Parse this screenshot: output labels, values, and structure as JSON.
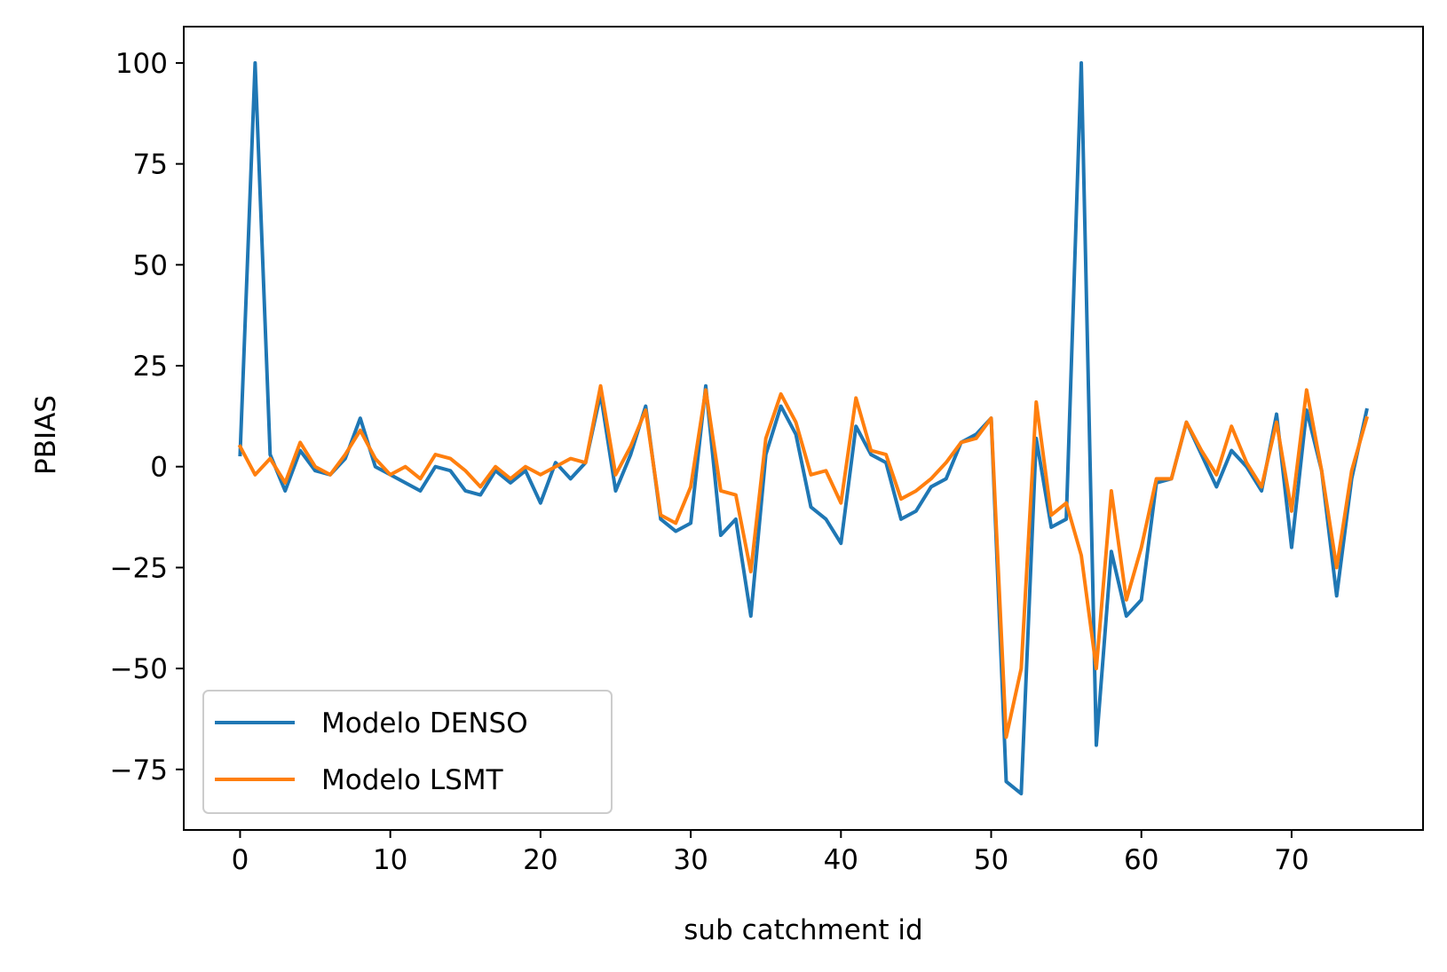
{
  "chart_data": {
    "type": "line",
    "title": "",
    "xlabel": "sub catchment id",
    "ylabel": "PBIAS",
    "xlim": [
      -3.75,
      78.75
    ],
    "ylim": [
      -90,
      109
    ],
    "xticks": [
      0,
      10,
      20,
      30,
      40,
      50,
      60,
      70
    ],
    "xtick_labels": [
      "0",
      "10",
      "20",
      "30",
      "40",
      "50",
      "60",
      "70"
    ],
    "yticks": [
      100,
      75,
      50,
      25,
      0,
      -25,
      -50,
      -75
    ],
    "ytick_labels": [
      "100",
      "75",
      "50",
      "25",
      "0",
      "−25",
      "−50",
      "−75"
    ],
    "grid": false,
    "legend_position": "lower left",
    "x": [
      0,
      1,
      2,
      3,
      4,
      5,
      6,
      7,
      8,
      9,
      10,
      11,
      12,
      13,
      14,
      15,
      16,
      17,
      18,
      19,
      20,
      21,
      22,
      23,
      24,
      25,
      26,
      27,
      28,
      29,
      30,
      31,
      32,
      33,
      34,
      35,
      36,
      37,
      38,
      39,
      40,
      41,
      42,
      43,
      44,
      45,
      46,
      47,
      48,
      49,
      50,
      51,
      52,
      53,
      54,
      55,
      56,
      57,
      58,
      59,
      60,
      61,
      62,
      63,
      64,
      65,
      66,
      67,
      68,
      69,
      70,
      71,
      72,
      73,
      74,
      75
    ],
    "series": [
      {
        "name": "Modelo DENSO",
        "color": "#1f77b4",
        "values": [
          3,
          100,
          3,
          -6,
          4,
          -1,
          -2,
          2,
          12,
          0,
          -2,
          -4,
          -6,
          0,
          -1,
          -6,
          -7,
          -1,
          -4,
          -1,
          -9,
          1,
          -3,
          1,
          18,
          -6,
          3,
          15,
          -13,
          -16,
          -14,
          20,
          -17,
          -13,
          -37,
          3,
          15,
          8,
          -10,
          -13,
          -19,
          10,
          3,
          1,
          -13,
          -11,
          -5,
          -3,
          6,
          8,
          12,
          -78,
          -81,
          7,
          -15,
          -13,
          100,
          -69,
          -21,
          -37,
          -33,
          -4,
          -3,
          11,
          3,
          -5,
          4,
          0,
          -6,
          13,
          -20,
          14,
          -1,
          -32,
          -3,
          14
        ]
      },
      {
        "name": "Modelo LSMT",
        "color": "#ff7f0e",
        "values": [
          5,
          -2,
          2,
          -4,
          6,
          0,
          -2,
          3,
          9,
          2,
          -2,
          0,
          -3,
          3,
          2,
          -1,
          -5,
          0,
          -3,
          0,
          -2,
          0,
          2,
          1,
          20,
          -2,
          5,
          14,
          -12,
          -14,
          -5,
          19,
          -6,
          -7,
          -26,
          7,
          18,
          11,
          -2,
          -1,
          -9,
          17,
          4,
          3,
          -8,
          -6,
          -3,
          1,
          6,
          7,
          12,
          -67,
          -50,
          16,
          -12,
          -9,
          -22,
          -50,
          -6,
          -33,
          -20,
          -3,
          -3,
          11,
          4,
          -2,
          10,
          1,
          -5,
          11,
          -11,
          19,
          -1,
          -25,
          -1,
          12
        ]
      }
    ]
  }
}
